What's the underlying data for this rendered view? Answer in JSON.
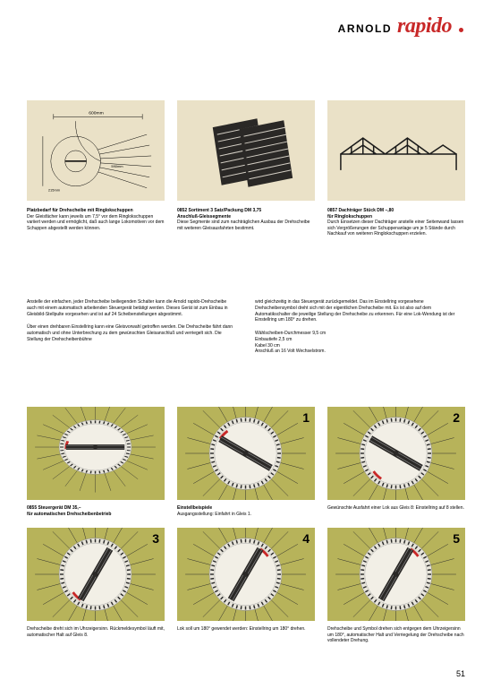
{
  "header": {
    "brand1": "ARNOLD",
    "brand2": "rapido"
  },
  "colors": {
    "cream": "#eae1c7",
    "olive": "#b7b35a",
    "red": "#c82828",
    "black": "#000000",
    "paper": "#ffffff"
  },
  "top_items": [
    {
      "title": "Platzbedarf für Drehscheibe mit Ringlokschuppen",
      "body": "Der Gleisfächer kann jeweils um 7,5° vor dem Ringlokschuppen variiert werden und ermöglicht, daß auch lange Lokomotiven vor dem Schuppen abgestellt werden können.",
      "diagram": {
        "type": "plan",
        "label_top": "600mm",
        "label_left": "215mm",
        "circle_r_mm": 215
      }
    },
    {
      "title": "0852  Sortiment           3 Satz/Packung DM 3,75",
      "subtitle": "Anschluß-Gleissegmente",
      "body": "Diese Segmente sind zum nachträglichen Ausbau der Drehscheibe mit weiteren Gleisausfahrten bestimmt."
    },
    {
      "title": "0857  Dachträger                         Stück DM –,80",
      "subtitle": "für Ringlokschuppen",
      "body": "Durch Einsetzen dieser Dachträger anstelle einer Seitenwand lassen sich Vergrößerungen der Schuppenanlage um je 5 Stände durch Nachkauf von weiteren Ringlokschuppen erzielen."
    }
  ],
  "mid_text": {
    "col1": [
      "Anstelle der einfachen, jeder Drehscheibe beiliegenden Schalter kann die Arnold rapido-Drehscheibe auch mit einem automatisch arbeitenden Steuergerät betätigt werden. Dieses Gerät ist zum Einbau in Gleisbild-Stellpulte vorgesehen und ist auf 24 Scheibenstellungen abgestimmt.",
      "Über einen drehbaren Einstellring kann eine Gleisvorwahl getroffen werden. Die Drehscheibe fährt dann automatisch und ohne Unterbrechung zu dem gewünschten Gleisanschluß und verriegelt sich. Die Stellung der Drehscheibenbühne"
    ],
    "col2": [
      "wird gleichzeitig in das Steuergerät zurückgemeldet. Das im Einstellring vorgesehene Drehscheibensymbol dreht sich mit der eigentlichen Drehscheibe mit. Es ist also auf dem Automatikschalter die jeweilige Stellung der Drehscheibe zu erkennen. Für eine Lok-Wendung ist der Einstellring um 180° zu drehen.",
      "Wählscheiben-Durchmesser    9,5 cm\nEinbautiefe                              2,5 cm\nKabel                                        30   cm\nAnschluß an 16 Volt Wechselstrom."
    ]
  },
  "grid": [
    {
      "num": "",
      "title": "0855  Steuergerät                                      DM 35,–",
      "subtitle": "für automatischen Drehscheibenbetrieb",
      "body": "",
      "angle": 0,
      "control_angle": -5
    },
    {
      "num": "1",
      "title": "Einstellbeispiele",
      "body": "Ausgangsstellung: Einfahrt in Gleis 1.",
      "angle": 30,
      "control_angle": 30
    },
    {
      "num": "2",
      "title": "",
      "body": "Gewünschte Ausfahrt einer Lok aus Gleis 8: Einstellring auf 8 stellen.",
      "angle": 30,
      "control_angle": -60
    },
    {
      "num": "3",
      "title": "",
      "body": "Drehscheibe dreht sich im Uhrzeigersinn. Rückmeldesymbol läuft mit, automatischer Halt auf Gleis 8.",
      "angle": -60,
      "control_angle": -60
    },
    {
      "num": "4",
      "title": "",
      "body": "Lok soll um 180° gewendet werden: Einstellring um 180° drehen.",
      "angle": -60,
      "control_angle": 120
    },
    {
      "num": "5",
      "title": "",
      "body": "Drehscheibe und Symbol drehen sich entgegen dem Uhrzeigersinn um 180°, automatischer Halt und Verriegelung der Drehscheibe nach vollendeter Drehung.",
      "angle": 120,
      "control_angle": 120
    }
  ],
  "page_number": "51"
}
